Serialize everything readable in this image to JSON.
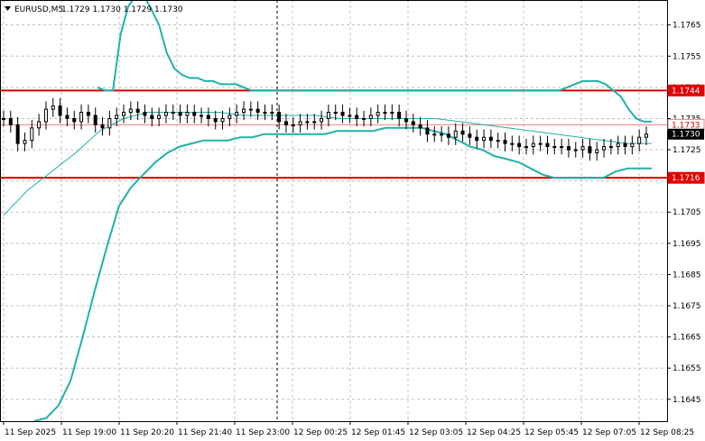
{
  "header": {
    "symbol": "EURUSD,M5",
    "ohlc": "1.1729 1.1730 1.1729 1.1730",
    "menu_icon": "triangle-down-icon"
  },
  "colors": {
    "background": "#ffffff",
    "grid": "#c0c0c0",
    "candle": "#000000",
    "bands": "#20b2aa",
    "level_line": "#e00000",
    "price_marker": "#000000"
  },
  "chart_data": {
    "type": "line",
    "symbol": "EURUSD",
    "timeframe": "M5",
    "y_axis": {
      "min": 1.1638,
      "max": 1.1773,
      "ticks": [
        "1.1765",
        "1.1755",
        "1.1745",
        "1.1735",
        "1.1725",
        "1.1715",
        "1.1705",
        "1.1695",
        "1.1685",
        "1.1675",
        "1.1665",
        "1.1655",
        "1.1645"
      ]
    },
    "x_axis": {
      "ticks": [
        "11 Sep 2025",
        "11 Sep 19:00",
        "11 Sep 20:20",
        "11 Sep 21:40",
        "11 Sep 23:00",
        "12 Sep 00:25",
        "12 Sep 01:45",
        "12 Sep 03:05",
        "12 Sep 04:25",
        "12 Sep 05:45",
        "12 Sep 07:05",
        "12 Sep 08:25"
      ]
    },
    "grid": true,
    "horizontal_levels": [
      {
        "price": 1.1744,
        "label": "1.1744",
        "color": "#e00000"
      },
      {
        "price": 1.1716,
        "label": "1.1716",
        "color": "#e00000"
      },
      {
        "price": 1.1733,
        "label": "1.1733",
        "color": "#f08080"
      }
    ],
    "current_price": {
      "price": 1.173,
      "label": "1.1730"
    },
    "series": [
      {
        "key": "close",
        "values": [
          1.1735,
          1.1733,
          1.1727,
          1.1728,
          1.1732,
          1.1734,
          1.1738,
          1.1739,
          1.1736,
          1.1735,
          1.1734,
          1.1737,
          1.1736,
          1.1733,
          1.1732,
          1.1735,
          1.1736,
          1.1737,
          1.1738,
          1.1737,
          1.1736,
          1.1735,
          1.1736,
          1.1737,
          1.1737,
          1.1736,
          1.1737,
          1.1736,
          1.1736,
          1.1735,
          1.1734,
          1.1735,
          1.1736,
          1.1737,
          1.1738,
          1.1738,
          1.1737,
          1.1737,
          1.1737,
          1.1734,
          1.1733,
          1.1733,
          1.1734,
          1.1734,
          1.1734,
          1.1735,
          1.1737,
          1.1737,
          1.1736,
          1.1736,
          1.1735,
          1.1735,
          1.1736,
          1.1737,
          1.1737,
          1.1737,
          1.1735,
          1.1734,
          1.1733,
          1.1732,
          1.173,
          1.173,
          1.173,
          1.1729,
          1.1731,
          1.173,
          1.1729,
          1.1728,
          1.1729,
          1.1728,
          1.1728,
          1.1727,
          1.1727,
          1.1726,
          1.1726,
          1.1727,
          1.1727,
          1.1726,
          1.1726,
          1.1726,
          1.1725,
          1.1725,
          1.1726,
          1.1724,
          1.1725,
          1.1726,
          1.1726,
          1.1727,
          1.1726,
          1.1727,
          1.1729,
          1.173
        ]
      },
      {
        "key": "band_upper",
        "values": [
          1.1745,
          1.1744,
          1.1744,
          1.1762,
          1.1771,
          1.178,
          1.1785,
          1.177,
          1.1765,
          1.1756,
          1.1751,
          1.1749,
          1.1748,
          1.1748,
          1.1747,
          1.1747,
          1.1746,
          1.1746,
          1.1746,
          1.1745,
          1.1744,
          1.1744,
          1.1744,
          1.1744,
          1.1744,
          1.1744,
          1.1744,
          1.1744,
          1.1744,
          1.1744,
          1.1744,
          1.1744,
          1.1744,
          1.1744,
          1.1744,
          1.1744,
          1.1744,
          1.1744,
          1.1744,
          1.1744,
          1.1744,
          1.1744,
          1.1744,
          1.1744,
          1.1744,
          1.1744,
          1.1744,
          1.1744,
          1.1744,
          1.1744,
          1.1744,
          1.1744,
          1.1744,
          1.1744,
          1.1744,
          1.1744,
          1.1744,
          1.1744,
          1.1744,
          1.1744,
          1.1744,
          1.1745,
          1.1746,
          1.1747,
          1.1747,
          1.1747,
          1.1746,
          1.1744,
          1.1742,
          1.1738,
          1.1735,
          1.1734,
          1.1734
        ]
      },
      {
        "key": "band_lower",
        "values": [
          1.1638,
          1.1639,
          1.1643,
          1.1651,
          1.1665,
          1.168,
          1.1694,
          1.1707,
          1.1713,
          1.1717,
          1.1721,
          1.1724,
          1.1726,
          1.1727,
          1.1728,
          1.1728,
          1.1728,
          1.1729,
          1.1729,
          1.173,
          1.173,
          1.173,
          1.173,
          1.173,
          1.173,
          1.1731,
          1.1731,
          1.1731,
          1.1731,
          1.1732,
          1.1732,
          1.1732,
          1.1732,
          1.1731,
          1.173,
          1.1728,
          1.1726,
          1.1725,
          1.1723,
          1.1722,
          1.1721,
          1.1719,
          1.1717,
          1.1716,
          1.1716,
          1.1716,
          1.1716,
          1.1716,
          1.1718,
          1.1719,
          1.1719,
          1.1719
        ]
      },
      {
        "key": "band_middle",
        "values": [
          1.1704,
          1.1712,
          1.1718,
          1.1724,
          1.1731,
          1.1735,
          1.1737,
          1.1737,
          1.1737,
          1.1737,
          1.1736,
          1.1736,
          1.1736,
          1.1736,
          1.1735,
          1.1735,
          1.1735,
          1.1735,
          1.1735,
          1.1734,
          1.1733,
          1.1732,
          1.1731,
          1.173,
          1.1729,
          1.1728,
          1.1727,
          1.1727
        ]
      }
    ]
  }
}
